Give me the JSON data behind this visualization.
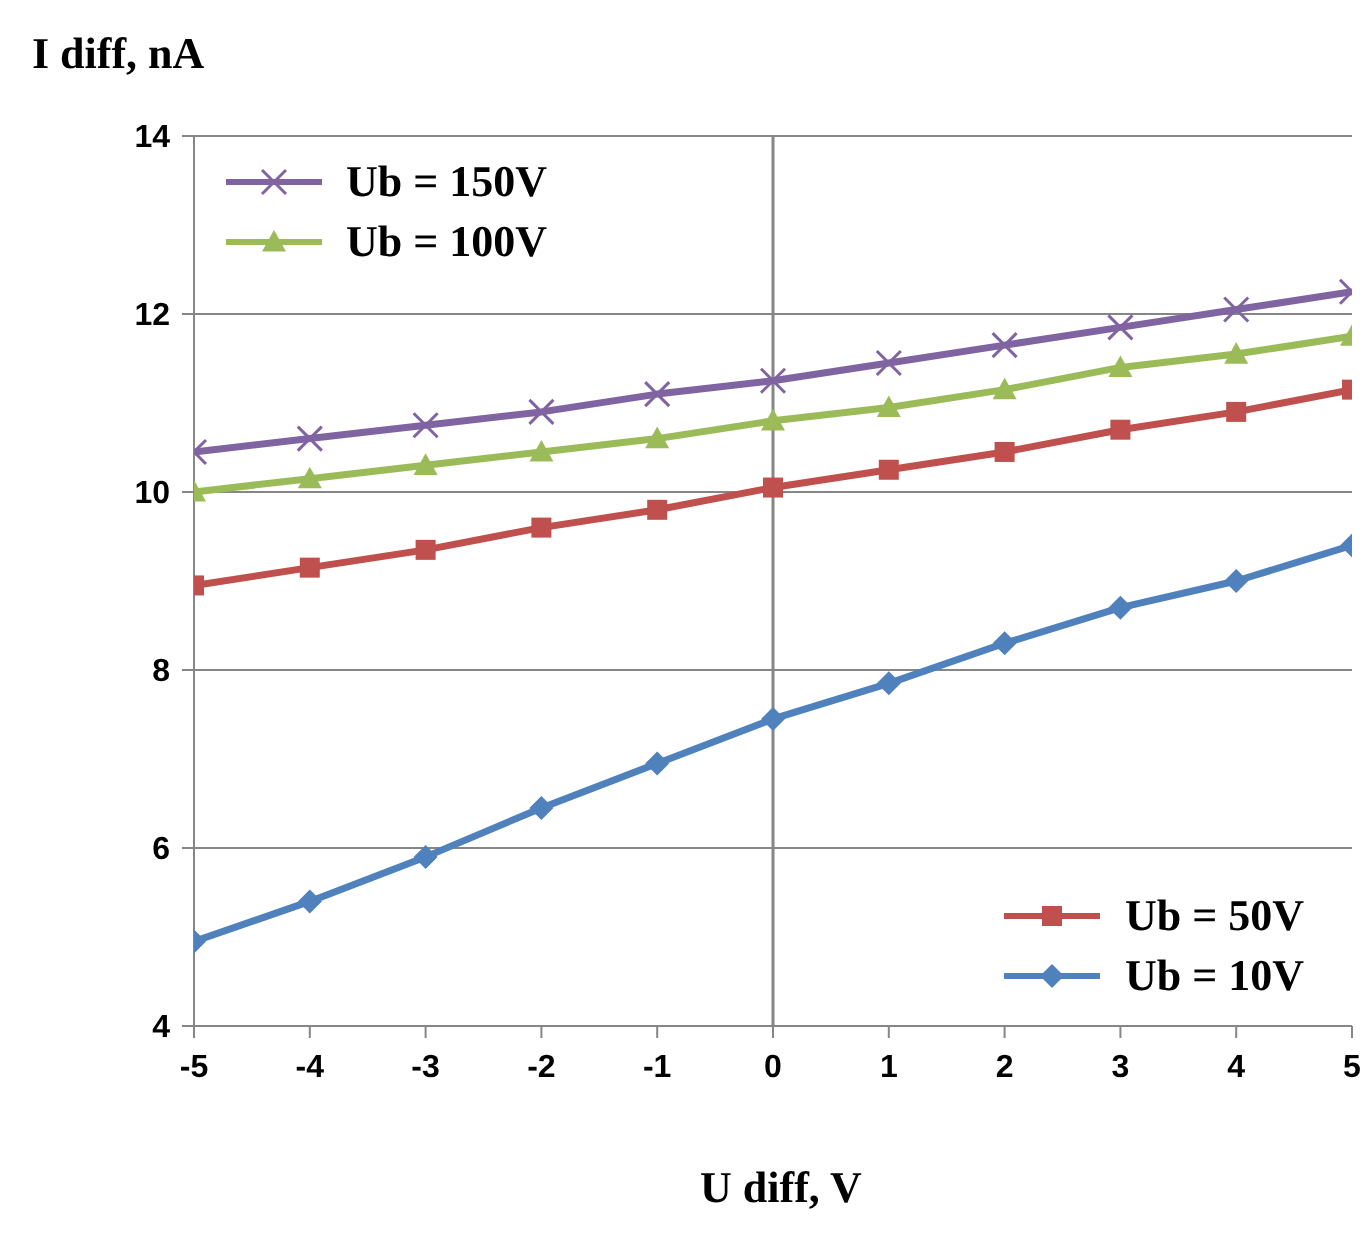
{
  "chart_data": {
    "type": "line",
    "ylabel": "I diff, nA",
    "xlabel": "U diff, V",
    "x": [
      -5,
      -4,
      -3,
      -2,
      -1,
      0,
      1,
      2,
      3,
      4,
      5
    ],
    "xlim": [
      -5,
      5
    ],
    "xticks": [
      -5,
      -4,
      -3,
      -2,
      -1,
      0,
      1,
      2,
      3,
      4,
      5
    ],
    "ylim": [
      4,
      14
    ],
    "yticks": [
      4,
      6,
      8,
      10,
      12,
      14
    ],
    "grid": "y",
    "legend": "top left",
    "line_style": "solid",
    "ref_lines": [
      {
        "axis": "x",
        "value": 0,
        "color": "#868686"
      }
    ],
    "series": [
      {
        "name": "Ub = 150V",
        "color": "#8064a2",
        "marker": "cross",
        "values": [
          10.45,
          10.6,
          10.75,
          10.9,
          11.1,
          11.25,
          11.45,
          11.65,
          11.85,
          12.05,
          12.25
        ]
      },
      {
        "name": "Ub = 100V",
        "color": "#9bbb59",
        "marker": "triangle",
        "values": [
          10.0,
          10.15,
          10.3,
          10.45,
          10.6,
          10.8,
          10.95,
          11.15,
          11.4,
          11.55,
          11.75
        ]
      },
      {
        "name": "Ub = 50V",
        "color": "#c0504d",
        "marker": "square",
        "values": [
          8.95,
          9.15,
          9.35,
          9.6,
          9.8,
          10.05,
          10.25,
          10.45,
          10.7,
          10.9,
          11.15
        ]
      },
      {
        "name": "Ub = 10V",
        "color": "#4f81bd",
        "marker": "diamond",
        "values": [
          4.95,
          5.4,
          5.9,
          6.45,
          6.95,
          7.45,
          7.85,
          8.3,
          8.7,
          9.0,
          9.4
        ]
      }
    ]
  }
}
